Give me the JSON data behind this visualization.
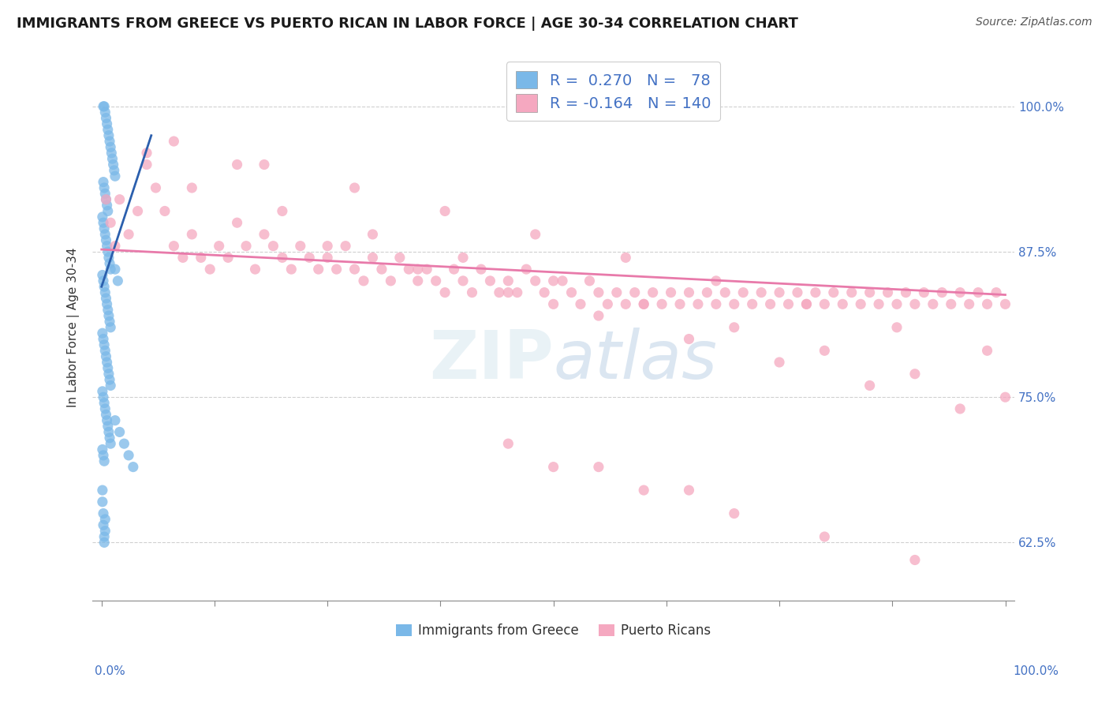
{
  "title": "IMMIGRANTS FROM GREECE VS PUERTO RICAN IN LABOR FORCE | AGE 30-34 CORRELATION CHART",
  "source": "Source: ZipAtlas.com",
  "ylabel": "In Labor Force | Age 30-34",
  "y_tick_values": [
    0.625,
    0.75,
    0.875,
    1.0
  ],
  "y_tick_labels": [
    "62.5%",
    "75.0%",
    "87.5%",
    "100.0%"
  ],
  "x_ticks": [
    0.0,
    0.125,
    0.25,
    0.375,
    0.5,
    0.625,
    0.75,
    0.875,
    1.0
  ],
  "x_min": -0.01,
  "x_max": 1.01,
  "y_min": 0.575,
  "y_max": 1.045,
  "blue_dot_color": "#7ab8e8",
  "pink_dot_color": "#f5a8c0",
  "blue_line_color": "#2b5fad",
  "pink_line_color": "#e87aaa",
  "legend_blue_R": "0.270",
  "legend_blue_N": "78",
  "legend_pink_R": "-0.164",
  "legend_pink_N": "140",
  "title_fontsize": 13,
  "axis_label_fontsize": 11,
  "tick_fontsize": 11,
  "source_fontsize": 10,
  "background_color": "#ffffff",
  "grid_color": "#d0d0d0",
  "right_tick_color": "#4472c4",
  "bottom_label_color": "#4472c4",
  "blue_label": "Immigrants from Greece",
  "pink_label": "Puerto Ricans",
  "blue_trend_x0": 0.0,
  "blue_trend_x1": 0.055,
  "blue_trend_y0": 0.845,
  "blue_trend_y1": 0.975,
  "pink_trend_x0": 0.0,
  "pink_trend_x1": 1.0,
  "pink_trend_y0": 0.877,
  "pink_trend_y1": 0.838,
  "blue_scatter_x": [
    0.002,
    0.003,
    0.004,
    0.005,
    0.006,
    0.007,
    0.008,
    0.009,
    0.01,
    0.011,
    0.012,
    0.013,
    0.014,
    0.015,
    0.002,
    0.003,
    0.004,
    0.005,
    0.006,
    0.007,
    0.001,
    0.002,
    0.003,
    0.004,
    0.005,
    0.006,
    0.007,
    0.008,
    0.009,
    0.01,
    0.001,
    0.002,
    0.003,
    0.004,
    0.005,
    0.006,
    0.007,
    0.008,
    0.009,
    0.01,
    0.001,
    0.002,
    0.003,
    0.004,
    0.005,
    0.006,
    0.007,
    0.008,
    0.009,
    0.01,
    0.001,
    0.002,
    0.003,
    0.004,
    0.005,
    0.006,
    0.007,
    0.008,
    0.009,
    0.01,
    0.001,
    0.002,
    0.003,
    0.015,
    0.02,
    0.025,
    0.03,
    0.035,
    0.015,
    0.018,
    0.001,
    0.001,
    0.002,
    0.002,
    0.003,
    0.003,
    0.004,
    0.004
  ],
  "blue_scatter_y": [
    1.0,
    1.0,
    0.995,
    0.99,
    0.985,
    0.98,
    0.975,
    0.97,
    0.965,
    0.96,
    0.955,
    0.95,
    0.945,
    0.94,
    0.935,
    0.93,
    0.925,
    0.92,
    0.915,
    0.91,
    0.905,
    0.9,
    0.895,
    0.89,
    0.885,
    0.88,
    0.875,
    0.87,
    0.865,
    0.86,
    0.855,
    0.85,
    0.845,
    0.84,
    0.835,
    0.83,
    0.825,
    0.82,
    0.815,
    0.81,
    0.805,
    0.8,
    0.795,
    0.79,
    0.785,
    0.78,
    0.775,
    0.77,
    0.765,
    0.76,
    0.755,
    0.75,
    0.745,
    0.74,
    0.735,
    0.73,
    0.725,
    0.72,
    0.715,
    0.71,
    0.705,
    0.7,
    0.695,
    0.73,
    0.72,
    0.71,
    0.7,
    0.69,
    0.86,
    0.85,
    0.67,
    0.66,
    0.65,
    0.64,
    0.63,
    0.625,
    0.635,
    0.645
  ],
  "pink_scatter_x": [
    0.005,
    0.01,
    0.015,
    0.02,
    0.03,
    0.04,
    0.05,
    0.06,
    0.07,
    0.08,
    0.09,
    0.1,
    0.11,
    0.12,
    0.13,
    0.14,
    0.15,
    0.16,
    0.17,
    0.18,
    0.19,
    0.2,
    0.21,
    0.22,
    0.23,
    0.24,
    0.25,
    0.26,
    0.27,
    0.28,
    0.29,
    0.3,
    0.31,
    0.32,
    0.33,
    0.34,
    0.35,
    0.36,
    0.37,
    0.38,
    0.39,
    0.4,
    0.41,
    0.42,
    0.43,
    0.44,
    0.45,
    0.46,
    0.47,
    0.48,
    0.49,
    0.5,
    0.51,
    0.52,
    0.53,
    0.54,
    0.55,
    0.56,
    0.57,
    0.58,
    0.59,
    0.6,
    0.61,
    0.62,
    0.63,
    0.64,
    0.65,
    0.66,
    0.67,
    0.68,
    0.69,
    0.7,
    0.71,
    0.72,
    0.73,
    0.74,
    0.75,
    0.76,
    0.77,
    0.78,
    0.79,
    0.8,
    0.81,
    0.82,
    0.83,
    0.84,
    0.85,
    0.86,
    0.87,
    0.88,
    0.89,
    0.9,
    0.91,
    0.92,
    0.93,
    0.94,
    0.95,
    0.96,
    0.97,
    0.98,
    0.99,
    1.0,
    0.05,
    0.15,
    0.25,
    0.35,
    0.45,
    0.55,
    0.65,
    0.75,
    0.85,
    0.95,
    0.1,
    0.2,
    0.3,
    0.4,
    0.5,
    0.6,
    0.7,
    0.8,
    0.9,
    1.0,
    0.08,
    0.18,
    0.28,
    0.38,
    0.48,
    0.58,
    0.68,
    0.78,
    0.88,
    0.98,
    0.5,
    0.6,
    0.7,
    0.8,
    0.9,
    0.45,
    0.55,
    0.65
  ],
  "pink_scatter_y": [
    0.92,
    0.9,
    0.88,
    0.92,
    0.89,
    0.91,
    0.95,
    0.93,
    0.91,
    0.88,
    0.87,
    0.89,
    0.87,
    0.86,
    0.88,
    0.87,
    0.9,
    0.88,
    0.86,
    0.89,
    0.88,
    0.87,
    0.86,
    0.88,
    0.87,
    0.86,
    0.87,
    0.86,
    0.88,
    0.86,
    0.85,
    0.87,
    0.86,
    0.85,
    0.87,
    0.86,
    0.85,
    0.86,
    0.85,
    0.84,
    0.86,
    0.85,
    0.84,
    0.86,
    0.85,
    0.84,
    0.85,
    0.84,
    0.86,
    0.85,
    0.84,
    0.83,
    0.85,
    0.84,
    0.83,
    0.85,
    0.84,
    0.83,
    0.84,
    0.83,
    0.84,
    0.83,
    0.84,
    0.83,
    0.84,
    0.83,
    0.84,
    0.83,
    0.84,
    0.83,
    0.84,
    0.83,
    0.84,
    0.83,
    0.84,
    0.83,
    0.84,
    0.83,
    0.84,
    0.83,
    0.84,
    0.83,
    0.84,
    0.83,
    0.84,
    0.83,
    0.84,
    0.83,
    0.84,
    0.83,
    0.84,
    0.83,
    0.84,
    0.83,
    0.84,
    0.83,
    0.84,
    0.83,
    0.84,
    0.83,
    0.84,
    0.83,
    0.96,
    0.95,
    0.88,
    0.86,
    0.84,
    0.82,
    0.8,
    0.78,
    0.76,
    0.74,
    0.93,
    0.91,
    0.89,
    0.87,
    0.85,
    0.83,
    0.81,
    0.79,
    0.77,
    0.75,
    0.97,
    0.95,
    0.93,
    0.91,
    0.89,
    0.87,
    0.85,
    0.83,
    0.81,
    0.79,
    0.69,
    0.67,
    0.65,
    0.63,
    0.61,
    0.71,
    0.69,
    0.67
  ]
}
